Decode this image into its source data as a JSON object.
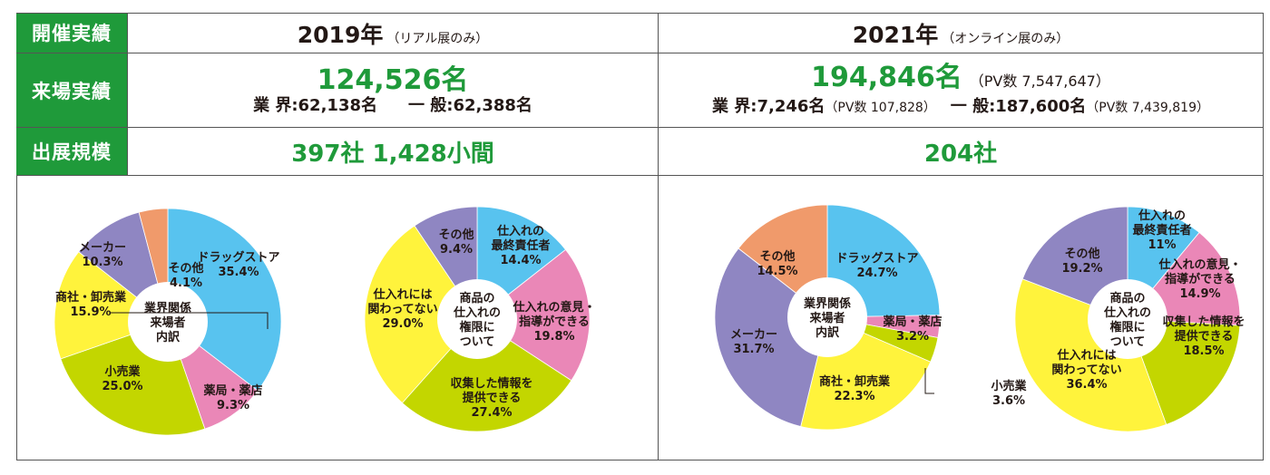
{
  "table": {
    "row_labels": {
      "results": "開催実績",
      "visitors": "来場実績",
      "scale": "出展規模"
    },
    "y2019": {
      "year": "2019年",
      "note": "（リアル展のみ）",
      "total": "124,526名",
      "industry": "業 界:62,138名",
      "general": "一 般:62,388名",
      "scale": "397社 1,428小間"
    },
    "y2021": {
      "year": "2021年",
      "note": "（オンライン展のみ）",
      "total": "194,846名",
      "total_pv": "（PV数 7,547,647）",
      "industry": "業 界:7,246名",
      "industry_pv": "（PV数 107,828）",
      "general": "一 般:187,600名",
      "general_pv": "（PV数 7,439,819）",
      "scale": "204社"
    }
  },
  "chart_data": [
    {
      "type": "pie",
      "title": "業界関係来場者内訳",
      "year": "2019",
      "categories": [
        "ドラッグストア",
        "薬局・薬店",
        "小売業",
        "商社・卸売業",
        "メーカー",
        "その他"
      ],
      "values": [
        35.4,
        9.3,
        25.0,
        15.9,
        10.3,
        4.1
      ],
      "labels": [
        "35.4%",
        "9.3%",
        "25.0%",
        "15.9%",
        "10.3%",
        "4.1%"
      ],
      "colors": [
        "#58c3ef",
        "#ea87b7",
        "#c3d600",
        "#fff33c",
        "#8f86c2",
        "#f09a6b"
      ]
    },
    {
      "type": "pie",
      "title": "商品の仕入れの権限について",
      "year": "2019",
      "categories": [
        "仕入れの最終責任者",
        "仕入れの意見・指導ができる",
        "収集した情報を提供できる",
        "仕入れには関わってない",
        "その他"
      ],
      "values": [
        14.4,
        19.8,
        27.4,
        29.0,
        9.4
      ],
      "labels": [
        "14.4%",
        "19.8%",
        "27.4%",
        "29.0%",
        "9.4%"
      ],
      "colors": [
        "#58c3ef",
        "#ea87b7",
        "#c3d600",
        "#fff33c",
        "#8f86c2"
      ]
    },
    {
      "type": "pie",
      "title": "業界関係来場者内訳",
      "year": "2021",
      "categories": [
        "ドラッグストア",
        "薬局・薬店",
        "小売業",
        "商社・卸売業",
        "メーカー",
        "その他"
      ],
      "values": [
        24.7,
        3.2,
        3.6,
        22.3,
        31.7,
        14.5
      ],
      "labels": [
        "24.7%",
        "3.2%",
        "3.6%",
        "22.3%",
        "31.7%",
        "14.5%"
      ],
      "colors": [
        "#58c3ef",
        "#ea87b7",
        "#c3d600",
        "#fff33c",
        "#8f86c2",
        "#f09a6b"
      ]
    },
    {
      "type": "pie",
      "title": "商品の仕入れの権限について",
      "year": "2021",
      "categories": [
        "仕入れの最終責任者",
        "仕入れの意見・指導ができる",
        "収集した情報を提供できる",
        "仕入れには関わってない",
        "その他"
      ],
      "values": [
        11,
        14.9,
        18.5,
        36.4,
        19.2
      ],
      "labels": [
        "11%",
        "14.9%",
        "18.5%",
        "36.4%",
        "19.2%"
      ],
      "colors": [
        "#58c3ef",
        "#ea87b7",
        "#c3d600",
        "#fff33c",
        "#8f86c2"
      ]
    }
  ]
}
